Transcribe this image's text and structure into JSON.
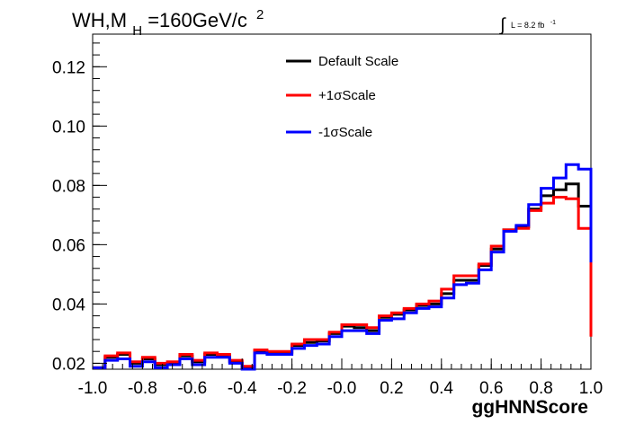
{
  "title": {
    "main": "WH,M",
    "sub": "H",
    "rest": "=160GeV/c",
    "sup": "2"
  },
  "lumi": {
    "symbol": "∫",
    "text": "L = 8.2 fb",
    "sup": "-1"
  },
  "chart_data": {
    "type": "line",
    "xlabel": "ggHNNScore",
    "ylabel": "",
    "xlim": [
      -1.0,
      1.0
    ],
    "ylim": [
      0.018,
      0.131
    ],
    "x_ticks": [
      "-1.0",
      "-0.8",
      "-0.6",
      "-0.4",
      "-0.2",
      "-0.0",
      "0.2",
      "0.4",
      "0.6",
      "0.8",
      "1.0"
    ],
    "y_ticks": [
      "0.02",
      "0.04",
      "0.06",
      "0.08",
      "0.10",
      "0.12"
    ],
    "grid": false,
    "legend_position": "top-center",
    "bin_edges": [
      -1.0,
      -0.95,
      -0.9,
      -0.85,
      -0.8,
      -0.75,
      -0.7,
      -0.65,
      -0.6,
      -0.55,
      -0.5,
      -0.45,
      -0.4,
      -0.35,
      -0.3,
      -0.25,
      -0.2,
      -0.15,
      -0.1,
      -0.05,
      0.0,
      0.05,
      0.1,
      0.15,
      0.2,
      0.25,
      0.3,
      0.35,
      0.4,
      0.45,
      0.5,
      0.55,
      0.6,
      0.65,
      0.7,
      0.75,
      0.8,
      0.85,
      0.9,
      0.95,
      1.0
    ],
    "series": [
      {
        "name": "Default Scale",
        "color": "#000000",
        "values": [
          0.0185,
          0.022,
          0.023,
          0.02,
          0.0215,
          0.0195,
          0.02,
          0.0225,
          0.0205,
          0.023,
          0.0225,
          0.0205,
          0.0185,
          0.024,
          0.0235,
          0.0235,
          0.026,
          0.027,
          0.0275,
          0.03,
          0.0325,
          0.032,
          0.031,
          0.0355,
          0.0365,
          0.038,
          0.0395,
          0.04,
          0.0435,
          0.048,
          0.048,
          0.053,
          0.0585,
          0.065,
          0.066,
          0.072,
          0.0765,
          0.0785,
          0.0805,
          0.073,
          0.0365
        ]
      },
      {
        "name": "+1σScale",
        "color": "#ff0000",
        "values": [
          0.0185,
          0.0225,
          0.0235,
          0.0205,
          0.022,
          0.02,
          0.0205,
          0.023,
          0.021,
          0.0235,
          0.023,
          0.021,
          0.019,
          0.0245,
          0.024,
          0.024,
          0.0265,
          0.028,
          0.028,
          0.0305,
          0.033,
          0.033,
          0.032,
          0.036,
          0.037,
          0.0385,
          0.04,
          0.041,
          0.045,
          0.0495,
          0.0495,
          0.0535,
          0.0595,
          0.065,
          0.0655,
          0.0715,
          0.074,
          0.076,
          0.0755,
          0.0655,
          0.029
        ]
      },
      {
        "name": "-1σScale",
        "color": "#0000ff",
        "values": [
          0.0185,
          0.021,
          0.0215,
          0.019,
          0.0205,
          0.0185,
          0.0195,
          0.0215,
          0.0195,
          0.022,
          0.022,
          0.02,
          0.018,
          0.0235,
          0.023,
          0.023,
          0.025,
          0.026,
          0.0265,
          0.029,
          0.031,
          0.031,
          0.03,
          0.0345,
          0.035,
          0.037,
          0.0385,
          0.039,
          0.042,
          0.0465,
          0.047,
          0.0515,
          0.0575,
          0.0645,
          0.0665,
          0.0735,
          0.079,
          0.0825,
          0.087,
          0.0855,
          0.054
        ]
      }
    ]
  }
}
